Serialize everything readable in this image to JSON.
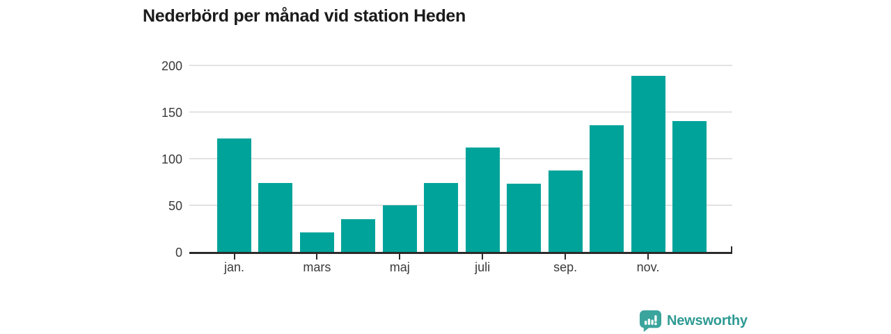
{
  "title": "Nederbörd per månad vid station Heden",
  "chart_data": {
    "type": "bar",
    "title": "Nederbörd per månad vid station Heden",
    "values": [
      122,
      74,
      21,
      35,
      50,
      74,
      112,
      73,
      87,
      136,
      189,
      140
    ],
    "x_tick_labels": [
      "jan.",
      "mars",
      "maj",
      "juli",
      "sep.",
      "nov."
    ],
    "x_tick_bar_indexes": [
      0,
      2,
      4,
      6,
      8,
      10
    ],
    "y_ticks": [
      0,
      50,
      100,
      150,
      200
    ],
    "ylim": [
      0,
      200
    ],
    "grid": true,
    "legend": false,
    "colors": {
      "bar": "#00a39a",
      "gridline": "#e2e2e2",
      "axis": "#2b2b2b",
      "tick_text": "#3a3a3a",
      "title_text": "#1b1b1b"
    }
  },
  "branding": {
    "logo_text": "Newsworthy",
    "icon_name": "newsworthy-bar-chart-bubble-icon",
    "colors": {
      "icon": "#3ba59d",
      "icon_glyph": "#ffffff",
      "text": "#2f9a94"
    }
  }
}
